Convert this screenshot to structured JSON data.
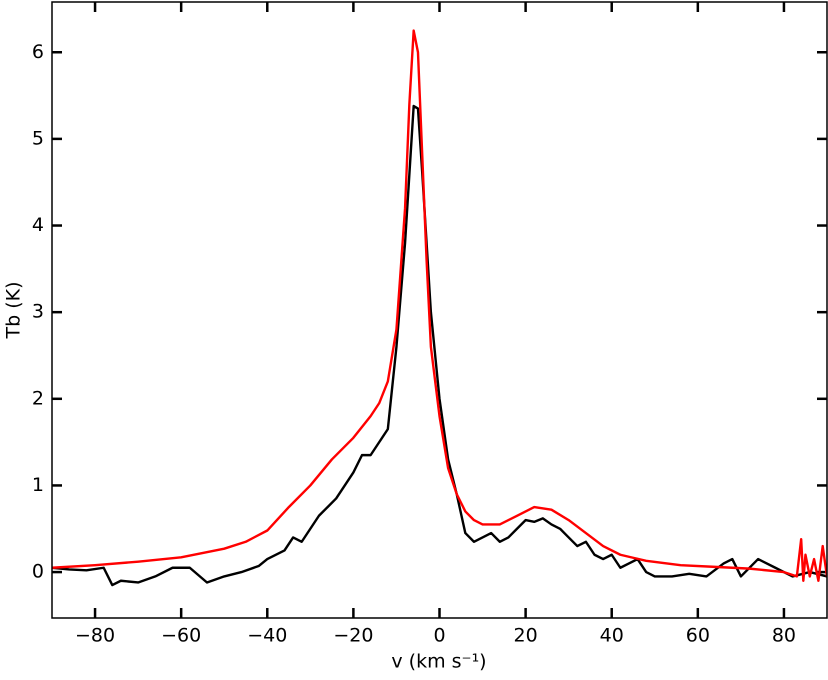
{
  "chart_data": {
    "type": "line",
    "xlabel": "v (km s⁻¹)",
    "ylabel": "Tb (K)",
    "xlim": [
      -90,
      90
    ],
    "ylim": [
      -0.53,
      6.58
    ],
    "xticks": [
      {
        "value": -80,
        "label": "−80"
      },
      {
        "value": -60,
        "label": "−60"
      },
      {
        "value": -40,
        "label": "−40"
      },
      {
        "value": -20,
        "label": "−20"
      },
      0,
      20,
      40,
      60,
      80
    ],
    "yticks": [
      0,
      1,
      2,
      3,
      4,
      5,
      6
    ],
    "grid": false,
    "series": [
      {
        "color": "#000000",
        "x": [
          -90,
          -86,
          -82,
          -78,
          -76,
          -74,
          -70,
          -66,
          -62,
          -58,
          -54,
          -50,
          -46,
          -42,
          -40,
          -36,
          -34,
          -32,
          -30,
          -28,
          -26,
          -24,
          -22,
          -20,
          -18,
          -16,
          -14,
          -12,
          -10,
          -8,
          -6,
          -5,
          -4,
          -2,
          0,
          2,
          4,
          6,
          8,
          10,
          12,
          14,
          16,
          18,
          20,
          22,
          24,
          26,
          28,
          30,
          32,
          34,
          36,
          38,
          40,
          42,
          44,
          46,
          48,
          50,
          54,
          58,
          62,
          66,
          68,
          70,
          74,
          78,
          82,
          86,
          90
        ],
        "values": [
          0.05,
          0.03,
          0.02,
          0.05,
          -0.15,
          -0.1,
          -0.12,
          -0.05,
          0.05,
          0.05,
          -0.12,
          -0.05,
          0.0,
          0.07,
          0.15,
          0.25,
          0.4,
          0.35,
          0.5,
          0.65,
          0.75,
          0.85,
          1.0,
          1.15,
          1.35,
          1.35,
          1.5,
          1.65,
          2.6,
          3.8,
          5.38,
          5.35,
          4.6,
          3.0,
          2.0,
          1.3,
          0.9,
          0.45,
          0.35,
          0.4,
          0.45,
          0.35,
          0.4,
          0.5,
          0.6,
          0.58,
          0.62,
          0.55,
          0.5,
          0.4,
          0.3,
          0.35,
          0.2,
          0.15,
          0.2,
          0.05,
          0.1,
          0.15,
          0.0,
          -0.05,
          -0.05,
          -0.02,
          -0.05,
          0.1,
          0.15,
          -0.05,
          0.15,
          0.05,
          -0.05,
          0.0,
          -0.05
        ]
      },
      {
        "color": "#ff0000",
        "x": [
          -90,
          -80,
          -70,
          -60,
          -50,
          -45,
          -40,
          -35,
          -30,
          -25,
          -20,
          -16,
          -14,
          -12,
          -10,
          -8,
          -7,
          -6,
          -5,
          -4,
          -3,
          -2,
          0,
          2,
          4,
          6,
          8,
          10,
          14,
          18,
          22,
          26,
          30,
          34,
          38,
          42,
          48,
          56,
          64,
          72,
          80,
          83,
          84,
          84.5,
          85,
          86,
          87,
          88,
          89,
          90
        ],
        "values": [
          0.05,
          0.08,
          0.12,
          0.17,
          0.27,
          0.35,
          0.48,
          0.75,
          1.0,
          1.3,
          1.55,
          1.8,
          1.95,
          2.2,
          2.8,
          4.2,
          5.4,
          6.25,
          6.0,
          4.8,
          3.6,
          2.6,
          1.8,
          1.2,
          0.9,
          0.7,
          0.6,
          0.55,
          0.55,
          0.65,
          0.75,
          0.72,
          0.6,
          0.45,
          0.3,
          0.2,
          0.13,
          0.08,
          0.06,
          0.04,
          0.0,
          -0.05,
          0.38,
          -0.1,
          0.2,
          -0.05,
          0.15,
          -0.1,
          0.3,
          -0.05
        ]
      }
    ]
  }
}
